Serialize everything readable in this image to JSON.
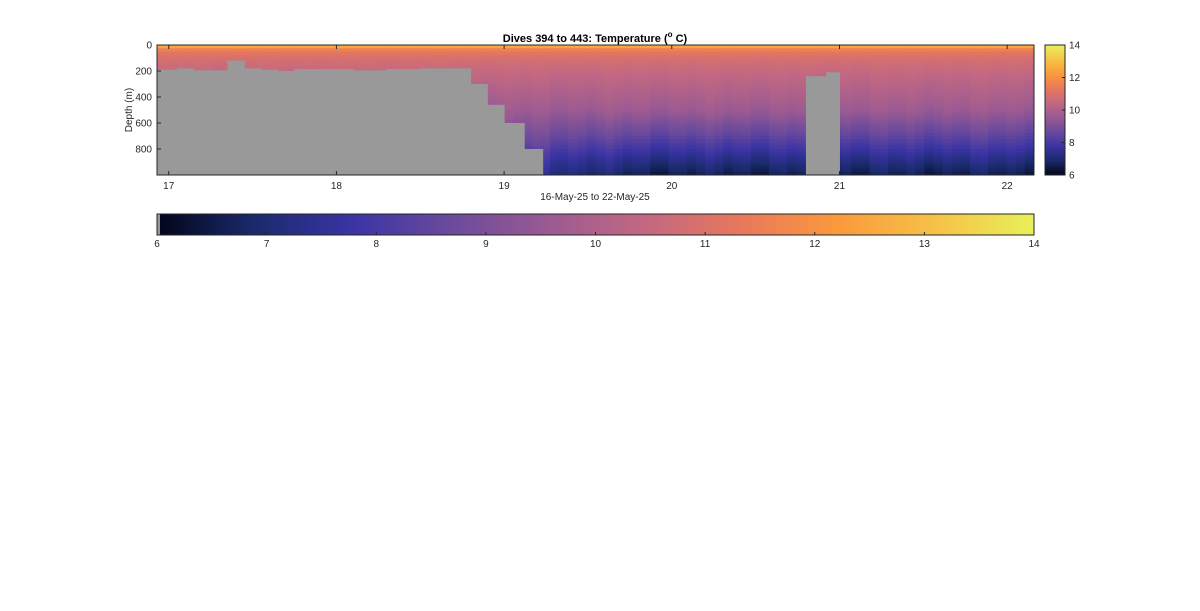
{
  "chart_data": {
    "type": "heatmap",
    "title": {
      "prefix": "Dives 394 to 443: Temperature (",
      "superscript": "o",
      "suffix": " C)"
    },
    "xlabel": "16-May-25 to 22-May-25",
    "ylabel": "Depth (m)",
    "x_range": [
      16.93,
      22.16
    ],
    "x_ticks": [
      17,
      18,
      19,
      20,
      21,
      22
    ],
    "x_tick_labels": [
      "17",
      "18",
      "19",
      "20",
      "21",
      "22"
    ],
    "y_range": [
      0,
      1000
    ],
    "y_reversed": true,
    "y_ticks": [
      0,
      200,
      400,
      600,
      800
    ],
    "y_tick_labels": [
      "0",
      "200",
      "400",
      "600",
      "800"
    ],
    "color_range": [
      6,
      14
    ],
    "side_colorbar_ticks": [
      6,
      8,
      10,
      12,
      14
    ],
    "side_colorbar_tick_labels": [
      "6",
      "8",
      "10",
      "12",
      "14"
    ],
    "bottom_colorbar_ticks": [
      6,
      7,
      8,
      9,
      10,
      11,
      12,
      13,
      14
    ],
    "bottom_colorbar_tick_labels": [
      "6",
      "7",
      "8",
      "9",
      "10",
      "11",
      "12",
      "13",
      "14"
    ],
    "no_data_color": "#999999",
    "colormap": [
      "#03051a",
      "#1a2a6c",
      "#3a34a4",
      "#6a4a9c",
      "#9a5a92",
      "#c36882",
      "#e8785c",
      "#fb9a3c",
      "#f6c247",
      "#e8f05a"
    ],
    "temperature_profile": {
      "depths": [
        0,
        10,
        25,
        50,
        100,
        150,
        200,
        300,
        400,
        500,
        600,
        700,
        800,
        900,
        1000
      ],
      "values": [
        13.6,
        12.6,
        11.8,
        11.3,
        10.9,
        10.7,
        10.5,
        10.2,
        9.9,
        9.6,
        9.2,
        8.8,
        8.3,
        7.8,
        7.4
      ]
    },
    "no_data_region": [
      {
        "x_start": 16.93,
        "x_end": 17.05,
        "top_depth": 190
      },
      {
        "x_start": 17.05,
        "x_end": 17.15,
        "top_depth": 180
      },
      {
        "x_start": 17.15,
        "x_end": 17.35,
        "top_depth": 195
      },
      {
        "x_start": 17.35,
        "x_end": 17.45,
        "top_depth": 120
      },
      {
        "x_start": 17.45,
        "x_end": 17.55,
        "top_depth": 180
      },
      {
        "x_start": 17.55,
        "x_end": 17.65,
        "top_depth": 190
      },
      {
        "x_start": 17.65,
        "x_end": 17.75,
        "top_depth": 200
      },
      {
        "x_start": 17.75,
        "x_end": 18.1,
        "top_depth": 185
      },
      {
        "x_start": 18.1,
        "x_end": 18.3,
        "top_depth": 195
      },
      {
        "x_start": 18.3,
        "x_end": 18.5,
        "top_depth": 185
      },
      {
        "x_start": 18.5,
        "x_end": 18.8,
        "top_depth": 180
      },
      {
        "x_start": 18.8,
        "x_end": 18.9,
        "top_depth": 300
      },
      {
        "x_start": 18.9,
        "x_end": 19.0,
        "top_depth": 460
      },
      {
        "x_start": 19.0,
        "x_end": 19.12,
        "top_depth": 600
      },
      {
        "x_start": 19.12,
        "x_end": 19.23,
        "top_depth": 800
      },
      {
        "x_start": 20.8,
        "x_end": 20.92,
        "top_depth": 240
      },
      {
        "x_start": 20.92,
        "x_end": 21.0,
        "top_depth": 210
      }
    ]
  }
}
